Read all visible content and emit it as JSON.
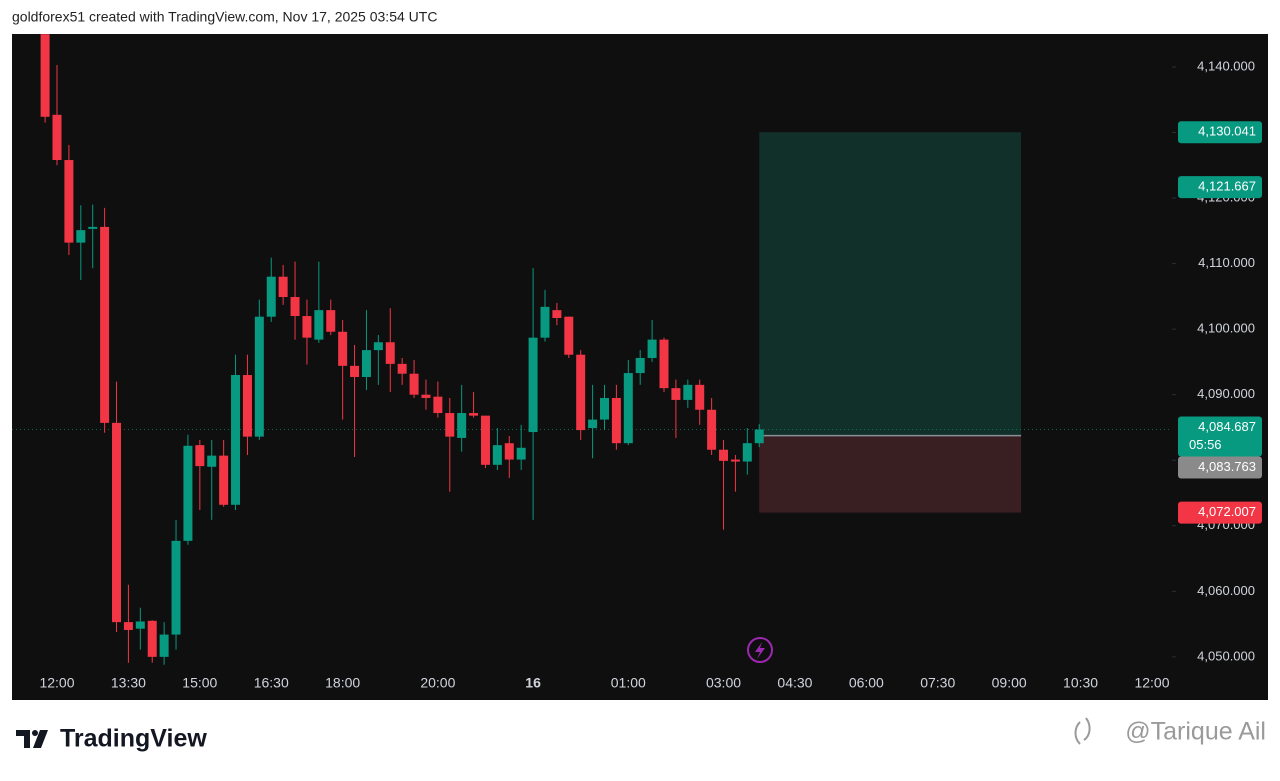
{
  "header": {
    "text": "goldforex51 created with TradingView.com, Nov 17, 2025 03:54 UTC"
  },
  "footer": {
    "brand": "TradingView",
    "watermark": "@Tarique Ail"
  },
  "chart_data": {
    "type": "candlestick",
    "categories": [
      null,
      null,
      null,
      "12:00",
      null,
      null,
      null,
      null,
      null,
      "13:30",
      null,
      null,
      null,
      null,
      null,
      "15:00",
      null,
      null,
      null,
      null,
      null,
      "16:30",
      null,
      null,
      null,
      null,
      null,
      "18:00",
      null,
      null,
      null,
      null,
      null,
      null,
      null,
      "20:00",
      null,
      null,
      null,
      null,
      null,
      null,
      null,
      "16",
      null,
      null,
      null,
      null,
      null,
      null,
      null,
      "01:00",
      null,
      null,
      null,
      null,
      null,
      null,
      null,
      "03:00",
      null,
      null,
      null,
      null,
      null,
      "04:30",
      null,
      null,
      null,
      null,
      null,
      "06:00",
      null,
      null,
      null,
      null,
      null,
      "07:30",
      null,
      null,
      null,
      null,
      null,
      "09:00",
      null,
      null,
      null,
      null,
      null,
      "10:30",
      null,
      null,
      null,
      null,
      null,
      "12:00"
    ],
    "open": [
      null,
      null,
      4145,
      4132.7,
      4125.8,
      4113.2,
      4115.3,
      4115.6,
      4085.7,
      4055.3,
      4054.3,
      4055.5,
      4050,
      4053.4,
      4067.7,
      4082.3,
      4079,
      4080.7,
      4073.2,
      4093,
      4083.6,
      4101.9,
      4108,
      4104.9,
      4102,
      4098.4,
      4102.9,
      4099.6,
      4094.4,
      4092.7,
      4096.8,
      4098,
      4094.7,
      4093.2,
      4090,
      4089.7,
      4087.2,
      4083.4,
      4087.2,
      4086.8,
      4079.3,
      4082.6,
      4080.1,
      4084.3,
      4098.7,
      4102.9,
      4101.9,
      4096.1,
      4084.9,
      4086.2,
      4089.5,
      4082.6,
      4093.3,
      4095.6,
      4098.4,
      4091,
      4089.2,
      4091.5,
      4087.7,
      4081.6,
      4080.1,
      4079.8,
      4082.6,
      null,
      null,
      null,
      null,
      null,
      null,
      null,
      null,
      null,
      null,
      null,
      null,
      null,
      null,
      null,
      null,
      null,
      null,
      null,
      null,
      null,
      null,
      null,
      null,
      null,
      null,
      null,
      null,
      null,
      null,
      null,
      null,
      null
    ],
    "high": [
      null,
      null,
      4145,
      4140.3,
      4128.1,
      4118.9,
      4119,
      4118.5,
      4092,
      4061,
      4057.5,
      4055.6,
      4055.3,
      4070.9,
      4083.9,
      4083.1,
      4083.1,
      4083.1,
      4096.1,
      4096.1,
      4104.5,
      4110.9,
      4109.8,
      4110.3,
      4104.5,
      4110.3,
      4104.5,
      4101.4,
      4097.6,
      4102.9,
      4099.1,
      4103.2,
      4095.6,
      4095.3,
      4092.3,
      4092,
      4089.5,
      4091.5,
      4090.4,
      4086.8,
      4084.9,
      4083.7,
      4085.4,
      4109.3,
      4106,
      4104,
      4101.9,
      4096.8,
      4091.5,
      4091.5,
      4091.5,
      4095.3,
      4096.8,
      4101.4,
      4098.7,
      4092.3,
      4092.3,
      4092.3,
      4089.5,
      4083.1,
      4080.8,
      4084.9,
      4085.5,
      null,
      null,
      null,
      null,
      null,
      null,
      null,
      null,
      null,
      null,
      null,
      null,
      null,
      null,
      null,
      null,
      null,
      null,
      null,
      null,
      null,
      null,
      null,
      null,
      null,
      null,
      null,
      null,
      null,
      null,
      null,
      null,
      null
    ],
    "low": [
      null,
      null,
      4131.5,
      4125,
      4111.3,
      4107.5,
      4109.3,
      4084.2,
      4053.8,
      4049.1,
      4051.1,
      4049.1,
      4048.8,
      4051.1,
      4067.1,
      4072.4,
      4070.9,
      4072.9,
      4072.4,
      4080.8,
      4083.1,
      4101.1,
      4103.7,
      4098.4,
      4094.6,
      4097.9,
      4099.1,
      4086.2,
      4080.5,
      4090.7,
      4091.5,
      4090.4,
      4091.5,
      4089.5,
      4087.7,
      4086.5,
      4075.2,
      4081.3,
      4086.5,
      4078.8,
      4078.5,
      4077.3,
      4078.5,
      4070.9,
      4098.1,
      4100.6,
      4095.6,
      4083.1,
      4080.3,
      4084.6,
      4081.6,
      4082.3,
      4091.5,
      4095,
      4090.4,
      4083.4,
      4088,
      4085.4,
      4080.8,
      4069.4,
      4075.2,
      4077.8,
      4082,
      null,
      null,
      null,
      null,
      null,
      null,
      null,
      null,
      null,
      null,
      null,
      null,
      null,
      null,
      null,
      null,
      null,
      null,
      null,
      null,
      null,
      null,
      null,
      null,
      null,
      null,
      null,
      null,
      null,
      null,
      null,
      null,
      null
    ],
    "close": [
      null,
      null,
      4132.4,
      4125.8,
      4113.2,
      4115.1,
      4115.6,
      4085.7,
      4055.3,
      4054.1,
      4055.4,
      4050,
      4053.4,
      4067.7,
      4082.2,
      4079.1,
      4080.7,
      4073.2,
      4093,
      4083.6,
      4101.9,
      4108,
      4104.9,
      4102,
      4098.7,
      4102.9,
      4099.6,
      4094.4,
      4092.7,
      4096.8,
      4098,
      4094.7,
      4093.2,
      4090,
      4089.5,
      4087.2,
      4083.6,
      4087.2,
      4086.8,
      4079.3,
      4082.3,
      4080.1,
      4081.9,
      4098.7,
      4103.4,
      4101.7,
      4096.1,
      4084.6,
      4086.2,
      4089.5,
      4082.6,
      4093.3,
      4095.6,
      4098.4,
      4091,
      4089.2,
      4091.5,
      4087.7,
      4081.6,
      4079.9,
      4079.8,
      4082.6,
      4084.687,
      null,
      null,
      null,
      null,
      null,
      null,
      null,
      null,
      null,
      null,
      null,
      null,
      null,
      null,
      null,
      null,
      null,
      null,
      null,
      null,
      null,
      null,
      null,
      null,
      null,
      null,
      null,
      null,
      null,
      null,
      null,
      null,
      null
    ],
    "up_color": "#089981",
    "down_color": "#f23645",
    "ylim": [
      4048.3,
      4145.03
    ],
    "yticks": [
      {
        "value": 4050,
        "label": "4,050.000"
      },
      {
        "value": 4060,
        "label": "4,060.000"
      },
      {
        "value": 4070,
        "label": "4,070.000"
      },
      {
        "value": 4080,
        "label": "4,080.000"
      },
      {
        "value": 4090,
        "label": "4,090.000"
      },
      {
        "value": 4100,
        "label": "4,100.000"
      },
      {
        "value": 4110,
        "label": "4,110.000"
      },
      {
        "value": 4120,
        "label": "4,120.000"
      },
      {
        "value": 4130,
        "label": "4,130.000"
      },
      {
        "value": 4140,
        "label": "4,140.000"
      }
    ],
    "grid": false,
    "position": {
      "target": {
        "value": 4130.041,
        "label": "4,130.041"
      },
      "entry": {
        "value": 4083.763,
        "label": "4,083.763"
      },
      "stop": {
        "value": 4072.007,
        "label": "4,072.007"
      }
    },
    "price_label": {
      "value": 4121.667,
      "label": "4,121.667"
    },
    "last_price": {
      "value": 4084.687,
      "label": "4,084.687"
    },
    "countdown": "05:56"
  }
}
